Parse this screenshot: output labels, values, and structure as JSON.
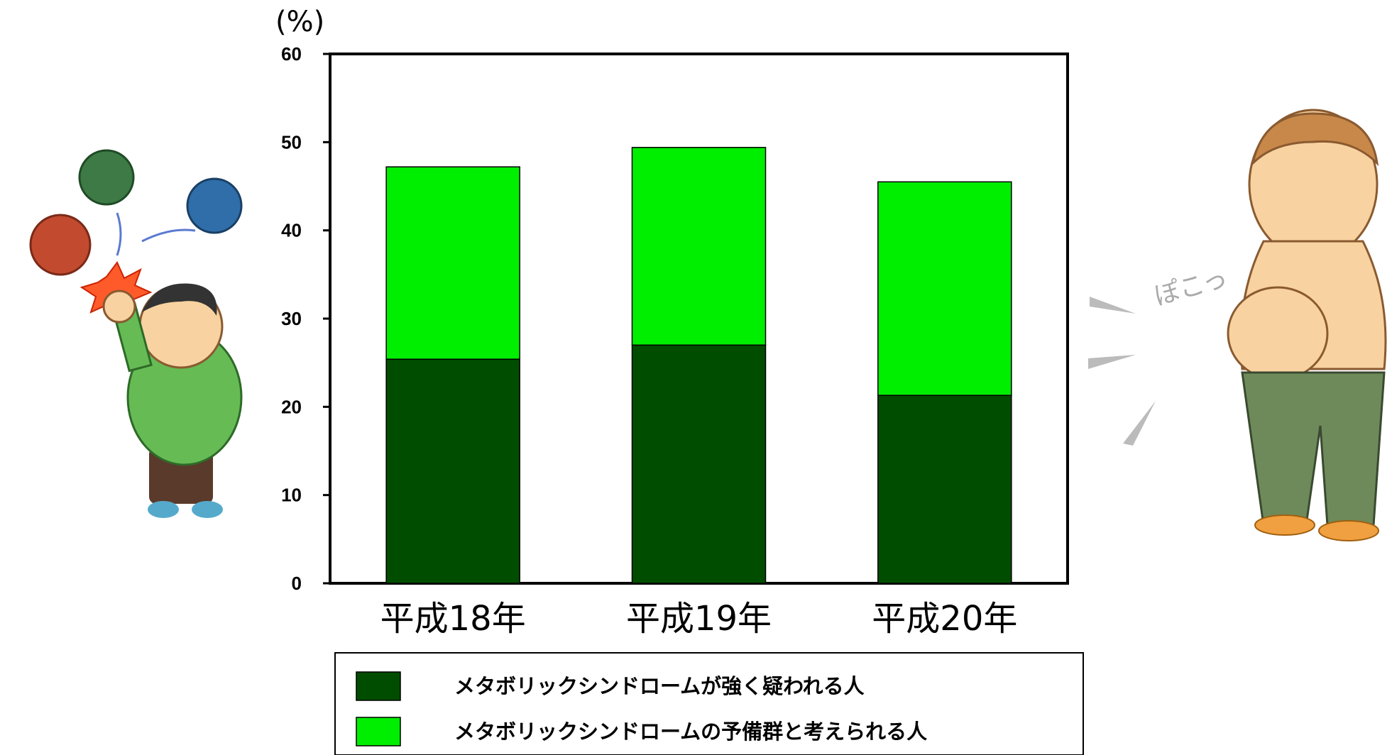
{
  "chart_data": {
    "type": "bar",
    "stacked": true,
    "ylabel": "(%)",
    "ylim": [
      0,
      60
    ],
    "yticks": [
      0,
      10,
      20,
      30,
      40,
      50,
      60
    ],
    "categories": [
      "平成18年",
      "平成19年",
      "平成20年"
    ],
    "series": [
      {
        "name": "メタボリックシンドロームが強く疑われる人",
        "color": "#004d00",
        "values": [
          25.4,
          27.0,
          21.3
        ]
      },
      {
        "name": "メタボリックシンドロームの予備群と考えられる人",
        "color": "#00ee00",
        "values": [
          21.8,
          22.4,
          24.2
        ]
      }
    ],
    "legend_position": "bottom"
  },
  "illustrations": {
    "left": "cartoon of an overweight man in a green shirt punching away germ characters",
    "right": "cartoon of an overweight shirtless man with a protruding belly",
    "belly_sound": "ぽこっ"
  }
}
